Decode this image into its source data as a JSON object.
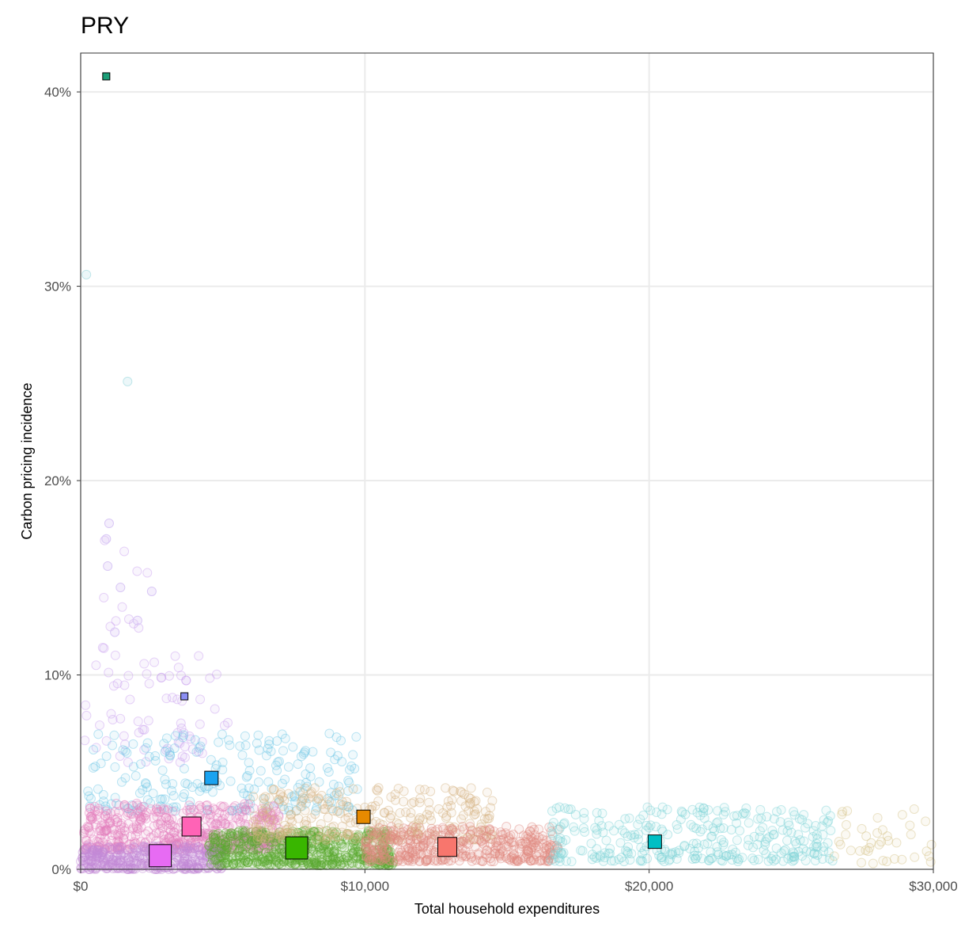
{
  "chart_data": {
    "type": "scatter",
    "title": "PRY",
    "xlabel": "Total household expenditures",
    "ylabel": "Carbon pricing incidence",
    "xlim": [
      0,
      30000
    ],
    "ylim": [
      0,
      0.42
    ],
    "x_ticks": [
      {
        "value": 0,
        "label": "$0"
      },
      {
        "value": 10000,
        "label": "$10,000"
      },
      {
        "value": 20000,
        "label": "$20,000"
      },
      {
        "value": 30000,
        "label": "$30,000"
      }
    ],
    "y_ticks": [
      {
        "value": 0,
        "label": "0%"
      },
      {
        "value": 0.1,
        "label": "10%"
      },
      {
        "value": 0.2,
        "label": "20%"
      },
      {
        "value": 0.3,
        "label": "30%"
      },
      {
        "value": 0.4,
        "label": "40%"
      }
    ],
    "grid": true,
    "legend": "none",
    "group_means": [
      {
        "color": "#1b9e77",
        "x": 900,
        "y": 0.408,
        "size": "small"
      },
      {
        "color": "#8b8ef2",
        "x": 3650,
        "y": 0.089,
        "size": "small"
      },
      {
        "color": "#1aa3f0",
        "x": 4600,
        "y": 0.047,
        "size": "medium"
      },
      {
        "color": "#ff63b6",
        "x": 3900,
        "y": 0.022,
        "size": "large"
      },
      {
        "color": "#e68a00",
        "x": 9950,
        "y": 0.027,
        "size": "medium"
      },
      {
        "color": "#e76bf3",
        "x": 2800,
        "y": 0.007,
        "size": "xlarge"
      },
      {
        "color": "#39b600",
        "x": 7600,
        "y": 0.011,
        "size": "xlarge"
      },
      {
        "color": "#f8766d",
        "x": 12900,
        "y": 0.0115,
        "size": "large"
      },
      {
        "color": "#00bfc4",
        "x": 20200,
        "y": 0.0142,
        "size": "medium"
      }
    ],
    "point_clouds": [
      {
        "color": "#c9a0f0",
        "xrange": [
          100,
          5200
        ],
        "yrange": [
          0.055,
          0.11
        ],
        "count": 70
      },
      {
        "color": "#c9a0f0",
        "xrange": [
          600,
          2400
        ],
        "yrange": [
          0.11,
          0.18
        ],
        "count": 14
      },
      {
        "color": "#6fc8e6",
        "xrange": [
          200,
          9800
        ],
        "yrange": [
          0.03,
          0.07
        ],
        "count": 220
      },
      {
        "color": "#e57fbf",
        "xrange": [
          100,
          7000
        ],
        "yrange": [
          0.01,
          0.034
        ],
        "count": 500
      },
      {
        "color": "#c48ad8",
        "xrange": [
          0,
          5000
        ],
        "yrange": [
          0.0,
          0.012
        ],
        "count": 350
      },
      {
        "color": "#5caa2e",
        "xrange": [
          4500,
          11000
        ],
        "yrange": [
          0.002,
          0.02
        ],
        "count": 550
      },
      {
        "color": "#d4b482",
        "xrange": [
          6000,
          14500
        ],
        "yrange": [
          0.015,
          0.042
        ],
        "count": 280
      },
      {
        "color": "#e08a80",
        "xrange": [
          10000,
          16800
        ],
        "yrange": [
          0.004,
          0.022
        ],
        "count": 400
      },
      {
        "color": "#7fd3d6",
        "xrange": [
          16500,
          26500
        ],
        "yrange": [
          0.004,
          0.032
        ],
        "count": 320
      },
      {
        "color": "#d4c48a",
        "xrange": [
          26500,
          30000
        ],
        "yrange": [
          0.003,
          0.032
        ],
        "count": 40
      }
    ],
    "outliers": [
      {
        "color": "#bfe6ea",
        "x": 200,
        "y": 0.306
      },
      {
        "color": "#bfe6ea",
        "x": 1650,
        "y": 0.251
      },
      {
        "color": "#d9c8f5",
        "x": 1000,
        "y": 0.178
      },
      {
        "color": "#d9c8f5",
        "x": 900,
        "y": 0.17
      },
      {
        "color": "#d9c8f5",
        "x": 950,
        "y": 0.156
      },
      {
        "color": "#d9c8f5",
        "x": 1400,
        "y": 0.145
      },
      {
        "color": "#d9c8f5",
        "x": 2500,
        "y": 0.143
      },
      {
        "color": "#d9c8f5",
        "x": 2000,
        "y": 0.128
      },
      {
        "color": "#d9c8f5",
        "x": 1200,
        "y": 0.122
      }
    ]
  }
}
